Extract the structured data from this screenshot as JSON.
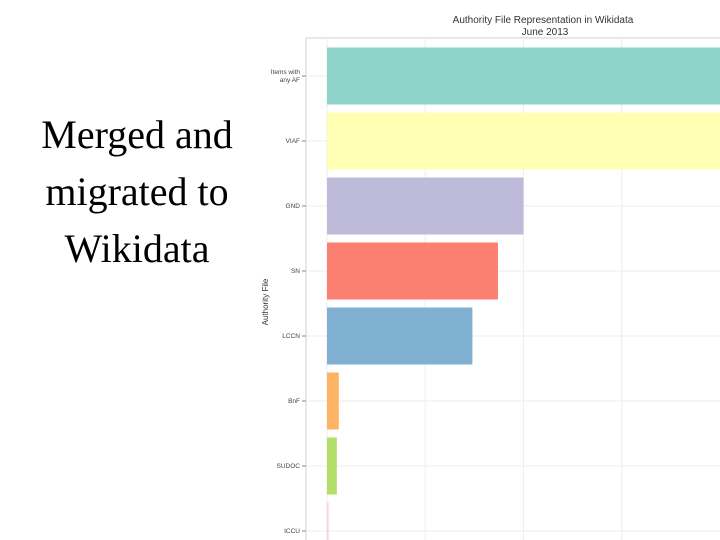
{
  "slide": {
    "title_lines": [
      "Merged and",
      "migrated to",
      "Wikidata"
    ]
  },
  "chart_data": {
    "type": "bar",
    "orientation": "horizontal",
    "title": "Authority File Representation in Wikidata",
    "subtitle": "June 2013",
    "xlabel": "",
    "ylabel": "Authority File",
    "categories": [
      "Items with any AF",
      "VIAF",
      "GND",
      "SN",
      "LCCN",
      "BnF",
      "SUDOC",
      "ICCU"
    ],
    "values": [
      100,
      100,
      50,
      43.5,
      37,
      3,
      2.5,
      0.4
    ],
    "xlim": [
      0,
      100
    ],
    "colors": [
      "#8dd3c7",
      "#ffffb3",
      "#bebada",
      "#fb8072",
      "#80b1d3",
      "#fdb462",
      "#b3de69",
      "#fccde5"
    ],
    "grid": true,
    "legend": "none"
  }
}
